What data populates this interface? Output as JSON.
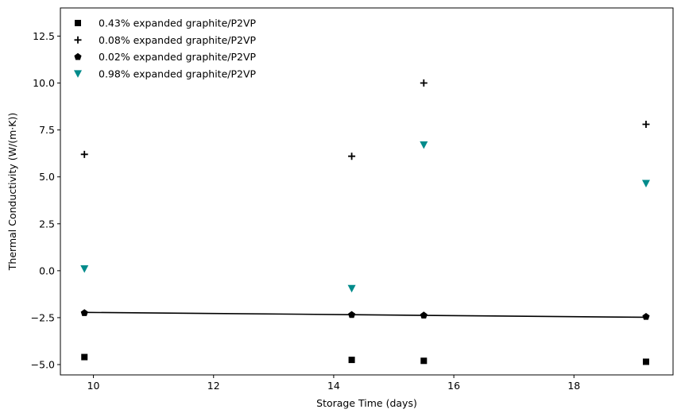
{
  "chart_data": {
    "type": "scatter",
    "xlabel": "Storage Time (days)",
    "ylabel": "Thermal Conductivity (W/(m·K))",
    "xlim": [
      9.45,
      19.65
    ],
    "ylim": [
      -5.55,
      14.0
    ],
    "xticks": [
      10,
      12,
      14,
      16,
      18
    ],
    "yticks": [
      -5.0,
      -2.5,
      0.0,
      2.5,
      5.0,
      7.5,
      10.0,
      12.5
    ],
    "grid": false,
    "legend_position": "top-left",
    "series": [
      {
        "name": "0.43% expanded graphite/P2VP",
        "marker": "square",
        "color": "#000000",
        "x": [
          9.85,
          14.3,
          15.5,
          19.2
        ],
        "y": [
          -4.6,
          -4.75,
          -4.8,
          -4.85
        ]
      },
      {
        "name": "0.08% expanded graphite/P2VP",
        "marker": "plus",
        "color": "#000000",
        "x": [
          9.85,
          14.3,
          15.5,
          19.2
        ],
        "y": [
          6.2,
          6.1,
          10.0,
          7.8
        ]
      },
      {
        "name": "0.02% expanded graphite/P2VP",
        "marker": "pentagon",
        "color": "#000000",
        "x": [
          9.85,
          14.3,
          15.5,
          19.2
        ],
        "y": [
          -2.25,
          -2.35,
          -2.38,
          -2.45
        ]
      },
      {
        "name": "0.98% expanded graphite/P2VP",
        "marker": "triangle-down",
        "color": "#008b8b",
        "x": [
          9.85,
          14.3,
          15.5,
          19.2
        ],
        "y": [
          0.1,
          -0.95,
          6.7,
          4.65
        ]
      }
    ],
    "trend_line": {
      "series": "0.02% expanded graphite/P2VP",
      "color": "#000000",
      "x": [
        9.85,
        14.3,
        15.5,
        19.2
      ],
      "y": [
        -2.22,
        -2.34,
        -2.38,
        -2.48
      ]
    }
  }
}
